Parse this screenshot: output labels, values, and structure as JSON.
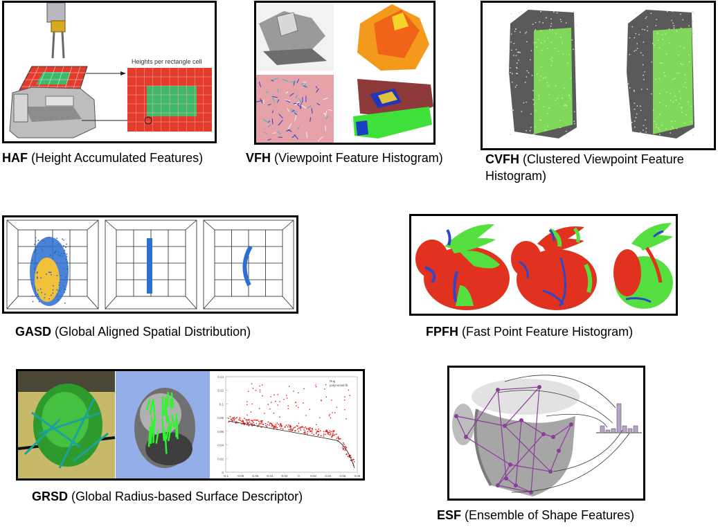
{
  "descriptors": [
    {
      "id": "haf",
      "abbr": "HAF",
      "desc": "(Height Accumulated Features)",
      "panel_text": "Heights per rectangle cell"
    },
    {
      "id": "vfh",
      "abbr": "VFH",
      "desc": "(Viewpoint Feature Histogram)"
    },
    {
      "id": "cvfh",
      "abbr": "CVFH",
      "desc": "(Clustered Viewpoint Feature Histogram)"
    },
    {
      "id": "gasd",
      "abbr": "GASD",
      "desc": "(Global Aligned Spatial Distribution)"
    },
    {
      "id": "fpfh",
      "abbr": "FPFH",
      "desc": "(Fast Point Feature Histogram)"
    },
    {
      "id": "grsd",
      "abbr": "GRSD",
      "desc": "(Global Radius-based Surface Descriptor)"
    },
    {
      "id": "esf",
      "abbr": "ESF",
      "desc": "(Ensemble of Shape Features)"
    }
  ],
  "grsd_plot": {
    "legend": [
      "Rug",
      "polynomial fit"
    ],
    "y_ticks": [
      "0.14",
      "0.12",
      "0.1",
      "0.08",
      "0.06",
      "0.04",
      "0.02",
      "0"
    ],
    "x_ticks": [
      "-0.1",
      "-0.08",
      "-0.06",
      "-0.04",
      "-0.02",
      "0",
      "0.02",
      "0.04",
      "0.06",
      "0.08"
    ]
  },
  "colors": {
    "red": "#e33b2c",
    "green": "#3fb86a",
    "bunny_red": "#e0321e",
    "bunny_green": "#55e040",
    "blue": "#2d47c8",
    "gasd_blue": "#1d5fc0",
    "esf_purple": "#8a3d99"
  }
}
